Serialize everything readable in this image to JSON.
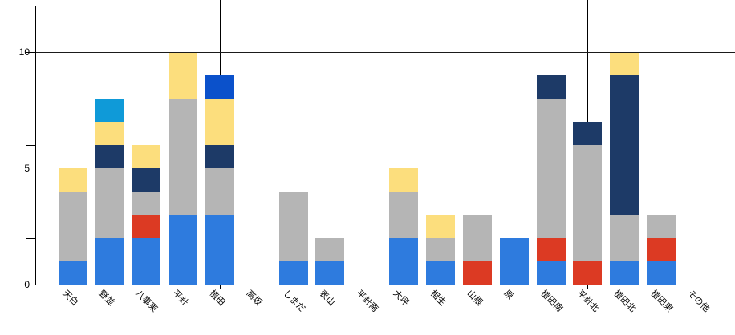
{
  "chart_data": {
    "type": "bar",
    "stacked": true,
    "title": "",
    "xlabel": "",
    "ylabel": "",
    "background_color": "#ffffff",
    "axis_color": "#000000",
    "categories": [
      "天白",
      "野並",
      "八事東",
      "平針",
      "植田",
      "高坂",
      "しまだ",
      "表山",
      "平針南",
      "大坪",
      "相生",
      "山根",
      "原",
      "植田南",
      "平針北",
      "植田北",
      "植田東",
      "その他"
    ],
    "series": [
      {
        "name": "blue",
        "color": "#2e7bde",
        "values": [
          1,
          2,
          2,
          3,
          3,
          0,
          1,
          1,
          0,
          2,
          1,
          0,
          2,
          1,
          0,
          1,
          1,
          0
        ]
      },
      {
        "name": "red",
        "color": "#dc3a23",
        "values": [
          0,
          0,
          1,
          0,
          0,
          0,
          0,
          0,
          0,
          0,
          0,
          1,
          0,
          1,
          1,
          0,
          1,
          0
        ]
      },
      {
        "name": "gray",
        "color": "#b5b5b5",
        "values": [
          3,
          3,
          1,
          5,
          2,
          0,
          3,
          1,
          0,
          2,
          1,
          2,
          0,
          6,
          5,
          2,
          1,
          0
        ]
      },
      {
        "name": "navy",
        "color": "#1d3a67",
        "values": [
          0,
          1,
          1,
          0,
          1,
          0,
          0,
          0,
          0,
          0,
          0,
          0,
          0,
          1,
          1,
          6,
          0,
          0
        ]
      },
      {
        "name": "yellow",
        "color": "#fcde7d",
        "values": [
          1,
          1,
          1,
          2,
          2,
          0,
          0,
          0,
          0,
          1,
          1,
          0,
          0,
          0,
          0,
          1,
          0,
          0
        ]
      },
      {
        "name": "light-blue",
        "color": "#0f9ad8",
        "values": [
          0,
          1,
          0,
          0,
          0,
          0,
          0,
          0,
          0,
          0,
          0,
          0,
          0,
          0,
          0,
          0,
          0,
          0
        ]
      },
      {
        "name": "royal-blue",
        "color": "#0b51cb",
        "values": [
          0,
          0,
          0,
          0,
          1,
          0,
          0,
          0,
          0,
          0,
          0,
          0,
          0,
          0,
          0,
          0,
          0,
          0
        ]
      }
    ],
    "totals": [
      5,
      8,
      6,
      10,
      9,
      0,
      4,
      2,
      0,
      5,
      3,
      3,
      2,
      9,
      7,
      10,
      3,
      0
    ],
    "y_axis": {
      "tick_labels": [
        "0",
        "5",
        "10"
      ],
      "labeled_values": [
        0,
        5,
        10
      ],
      "minor_tick_values": [
        0,
        2,
        4,
        6,
        8,
        10,
        12
      ],
      "visible_range": [
        0,
        12
      ],
      "gridline_at": 10
    },
    "error_lines_at_categories": [
      "植田",
      "大坪",
      "平針北"
    ],
    "legend": "none"
  }
}
